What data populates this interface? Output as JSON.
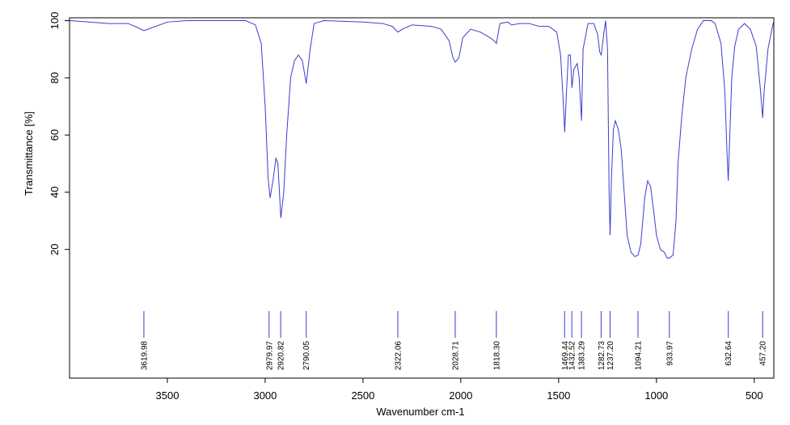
{
  "chart_data": {
    "type": "line",
    "xlabel": "Wavenumber cm-1",
    "ylabel": "Transmittance [%]",
    "xlim": [
      4000,
      400
    ],
    "ylim": [
      -25,
      101
    ],
    "xticks": [
      3500,
      3000,
      2500,
      2000,
      1500,
      1000,
      500
    ],
    "yticks": [
      20,
      40,
      60,
      80,
      100
    ],
    "grid": false,
    "series": [
      {
        "color": "#3c3ccf",
        "x": [
          4000,
          3900,
          3800,
          3700,
          3650,
          3620,
          3580,
          3500,
          3400,
          3200,
          3100,
          3050,
          3020,
          3000,
          2985,
          2975,
          2960,
          2945,
          2935,
          2920,
          2905,
          2890,
          2870,
          2850,
          2830,
          2810,
          2790,
          2770,
          2750,
          2700,
          2500,
          2400,
          2350,
          2322,
          2300,
          2250,
          2150,
          2100,
          2060,
          2040,
          2028,
          2010,
          1990,
          1950,
          1900,
          1850,
          1830,
          1818,
          1800,
          1760,
          1740,
          1700,
          1650,
          1600,
          1550,
          1510,
          1490,
          1475,
          1469,
          1460,
          1450,
          1440,
          1432,
          1422,
          1405,
          1395,
          1383,
          1375,
          1350,
          1320,
          1300,
          1290,
          1282,
          1270,
          1260,
          1250,
          1242,
          1237,
          1230,
          1220,
          1210,
          1195,
          1180,
          1165,
          1150,
          1130,
          1110,
          1094,
          1080,
          1060,
          1045,
          1030,
          1015,
          1000,
          980,
          960,
          945,
          934,
          915,
          900,
          890,
          870,
          850,
          820,
          790,
          760,
          720,
          700,
          670,
          650,
          640,
          633,
          625,
          615,
          600,
          580,
          550,
          520,
          490,
          470,
          457,
          450,
          430,
          410,
          400
        ],
        "values": [
          100,
          99.5,
          99,
          99,
          97.5,
          96.5,
          97.5,
          99.5,
          100,
          100,
          100,
          98.5,
          92,
          70,
          45,
          38,
          44,
          52,
          50,
          31,
          40,
          60,
          80,
          86,
          88,
          86,
          78,
          90,
          99,
          100,
          99.5,
          99,
          98,
          96,
          97,
          98.5,
          98,
          97,
          93,
          87,
          85.5,
          87,
          94,
          97,
          96,
          94,
          93,
          92,
          99,
          99.5,
          98.5,
          99,
          99,
          98,
          98,
          96,
          88,
          70,
          61,
          75,
          88,
          88,
          76.5,
          83,
          85,
          80,
          65,
          90,
          99,
          99,
          95,
          89,
          88,
          95,
          100,
          90,
          40,
          25,
          45,
          62,
          65,
          62,
          55,
          40,
          25,
          19,
          17.5,
          18,
          22,
          38,
          44,
          42,
          34,
          25,
          20,
          19,
          17,
          17,
          18,
          30,
          50,
          67,
          80,
          90,
          97,
          100,
          100,
          99,
          92,
          75,
          55,
          44,
          60,
          80,
          91,
          97,
          99,
          97,
          91,
          77,
          66,
          75,
          90,
          97,
          100
        ]
      }
    ],
    "peaks": [
      3619.98,
      2979.97,
      2920.82,
      2790.05,
      2322.06,
      2028.71,
      {
        "value": 1818.3,
        "label": "1818.30"
      },
      1469.44,
      1432.52,
      1383.29,
      1282.73,
      {
        "value": 1237.2,
        "label": "1237.20"
      },
      1094.21,
      933.97,
      632.64,
      {
        "value": 457.2,
        "label": "457.20"
      }
    ]
  }
}
